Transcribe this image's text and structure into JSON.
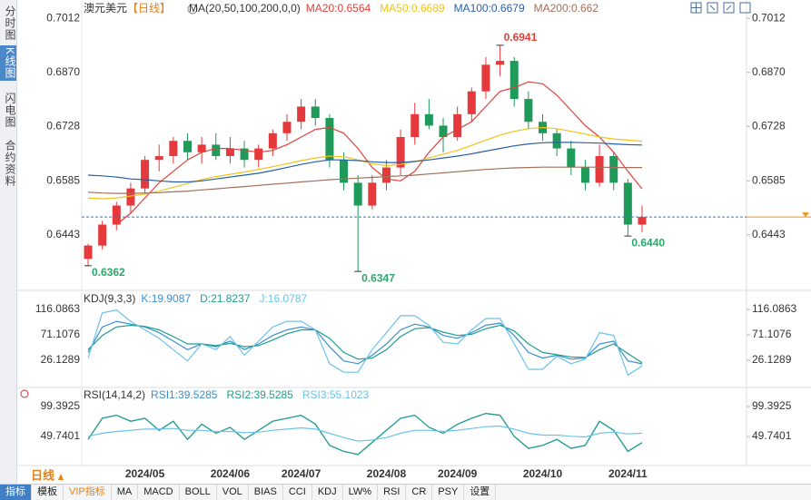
{
  "sidebar_tabs": [
    "分时图",
    "K线图",
    "闪电图",
    "合约资料"
  ],
  "chart_data": [
    {
      "type": "candlestick",
      "title": "澳元美元",
      "period": "【日线】",
      "indicator": "MA(20,50,100,200,0,0)",
      "categories": [
        null,
        null,
        null,
        null,
        "2024/05",
        null,
        null,
        null,
        null,
        null,
        "2024/06",
        null,
        null,
        null,
        null,
        "2024/07",
        null,
        null,
        null,
        null,
        null,
        "2024/08",
        null,
        null,
        null,
        null,
        "2024/09",
        null,
        null,
        null,
        null,
        null,
        "2024/10",
        null,
        null,
        null,
        null,
        null,
        "2024/11",
        null
      ],
      "ohlc": [
        [
          0.638,
          0.642,
          0.6362,
          0.6415
        ],
        [
          0.6415,
          0.648,
          0.6405,
          0.647
        ],
        [
          0.647,
          0.653,
          0.6455,
          0.652
        ],
        [
          0.652,
          0.658,
          0.65,
          0.6565
        ],
        [
          0.6565,
          0.665,
          0.655,
          0.664
        ],
        [
          0.664,
          0.668,
          0.661,
          0.665
        ],
        [
          0.665,
          0.67,
          0.663,
          0.669
        ],
        [
          0.669,
          0.671,
          0.664,
          0.666
        ],
        [
          0.666,
          0.67,
          0.663,
          0.668
        ],
        [
          0.668,
          0.671,
          0.664,
          0.665
        ],
        [
          0.665,
          0.67,
          0.663,
          0.667
        ],
        [
          0.667,
          0.669,
          0.662,
          0.664
        ],
        [
          0.664,
          0.668,
          0.662,
          0.667
        ],
        [
          0.667,
          0.672,
          0.665,
          0.671
        ],
        [
          0.671,
          0.676,
          0.669,
          0.674
        ],
        [
          0.674,
          0.68,
          0.672,
          0.678
        ],
        [
          0.678,
          0.68,
          0.673,
          0.675
        ],
        [
          0.675,
          0.676,
          0.662,
          0.664
        ],
        [
          0.664,
          0.666,
          0.656,
          0.658
        ],
        [
          0.658,
          0.66,
          0.6347,
          0.652
        ],
        [
          0.652,
          0.66,
          0.651,
          0.658
        ],
        [
          0.658,
          0.664,
          0.656,
          0.662
        ],
        [
          0.662,
          0.672,
          0.66,
          0.67
        ],
        [
          0.67,
          0.679,
          0.668,
          0.676
        ],
        [
          0.676,
          0.68,
          0.672,
          0.673
        ],
        [
          0.673,
          0.675,
          0.666,
          0.67
        ],
        [
          0.67,
          0.678,
          0.669,
          0.676
        ],
        [
          0.676,
          0.683,
          0.674,
          0.682
        ],
        [
          0.682,
          0.691,
          0.68,
          0.689
        ],
        [
          0.689,
          0.6941,
          0.686,
          0.69
        ],
        [
          0.69,
          0.691,
          0.678,
          0.68
        ],
        [
          0.68,
          0.682,
          0.672,
          0.674
        ],
        [
          0.674,
          0.676,
          0.669,
          0.671
        ],
        [
          0.671,
          0.672,
          0.665,
          0.667
        ],
        [
          0.667,
          0.669,
          0.66,
          0.662
        ],
        [
          0.662,
          0.664,
          0.656,
          0.658
        ],
        [
          0.658,
          0.668,
          0.657,
          0.665
        ],
        [
          0.665,
          0.666,
          0.656,
          0.658
        ],
        [
          0.658,
          0.659,
          0.644,
          0.647
        ],
        [
          0.647,
          0.652,
          0.645,
          0.649
        ]
      ],
      "up_color": "#e5393d",
      "down_color": "#1f9a5b",
      "series": [
        {
          "name": "MA20:0.6564",
          "color": "#e0403a",
          "values": [
            null,
            null,
            0.647,
            0.65,
            0.654,
            0.658,
            0.661,
            0.664,
            0.666,
            0.667,
            0.667,
            0.6665,
            0.666,
            0.6665,
            0.668,
            0.67,
            0.672,
            0.6725,
            0.671,
            0.667,
            0.662,
            0.659,
            0.6585,
            0.661,
            0.666,
            0.67,
            0.672,
            0.674,
            0.678,
            0.682,
            0.683,
            0.6845,
            0.684,
            0.681,
            0.677,
            0.673,
            0.67,
            0.666,
            0.661,
            0.6564
          ]
        },
        {
          "name": "MA50:0.6689",
          "color": "#f0c419",
          "values": [
            0.654,
            0.6538,
            0.654,
            0.6545,
            0.655,
            0.6558,
            0.6568,
            0.6578,
            0.6588,
            0.6596,
            0.6602,
            0.6608,
            0.6615,
            0.6622,
            0.663,
            0.6638,
            0.6645,
            0.665,
            0.6648,
            0.664,
            0.663,
            0.6625,
            0.6628,
            0.6635,
            0.6645,
            0.6655,
            0.6665,
            0.6678,
            0.6692,
            0.6705,
            0.6715,
            0.6722,
            0.6725,
            0.6722,
            0.6715,
            0.6708,
            0.67,
            0.6695,
            0.6692,
            0.6689
          ]
        },
        {
          "name": "MA100:0.6679",
          "color": "#2a5ea8",
          "values": [
            0.66,
            0.6598,
            0.6595,
            0.659,
            0.6588,
            0.6585,
            0.6582,
            0.6582,
            0.6585,
            0.659,
            0.6595,
            0.66,
            0.6605,
            0.6612,
            0.662,
            0.6628,
            0.6635,
            0.664,
            0.664,
            0.6638,
            0.6635,
            0.6633,
            0.6633,
            0.6636,
            0.664,
            0.6645,
            0.665,
            0.6656,
            0.6663,
            0.667,
            0.6677,
            0.6682,
            0.6685,
            0.6686,
            0.6686,
            0.6685,
            0.6684,
            0.6682,
            0.668,
            0.6679
          ]
        },
        {
          "name": "MA200:0.662",
          "color": "#a0705a",
          "values": [
            0.6555,
            0.6553,
            0.6552,
            0.6552,
            0.6553,
            0.6554,
            0.6556,
            0.6558,
            0.6561,
            0.6564,
            0.6567,
            0.657,
            0.6573,
            0.6576,
            0.6579,
            0.6582,
            0.6585,
            0.6588,
            0.659,
            0.6592,
            0.6594,
            0.6596,
            0.6598,
            0.66,
            0.6603,
            0.6606,
            0.6609,
            0.6612,
            0.6615,
            0.6617,
            0.6619,
            0.662,
            0.6621,
            0.6621,
            0.6621,
            0.6621,
            0.6621,
            0.662,
            0.662,
            0.662
          ]
        }
      ],
      "extremes": [
        0.6941,
        0.6362,
        0.6347,
        {
          "value": 0.644,
          "label": "0.6440"
        }
      ],
      "ylim": [
        0.6302,
        0.7048
      ],
      "yticks": [
        0.7012,
        {
          "value": 0.687,
          "label": "0.6870"
        },
        0.6728,
        0.6585,
        0.6443
      ]
    },
    {
      "type": "line",
      "title": "KDJ(9,3,3)",
      "series": [
        {
          "name": "K:19.9087",
          "color": "#3b8ed0",
          "values": [
            40,
            85,
            95,
            90,
            85,
            75,
            60,
            45,
            55,
            50,
            60,
            45,
            55,
            70,
            80,
            85,
            80,
            50,
            25,
            20,
            35,
            55,
            80,
            90,
            85,
            70,
            65,
            75,
            88,
            92,
            70,
            40,
            30,
            35,
            28,
            30,
            55,
            60,
            25,
            19.9087
          ]
        },
        {
          "name": "D:21.8237",
          "color": "#1f9e8e",
          "values": [
            45,
            70,
            85,
            88,
            86,
            80,
            68,
            55,
            55,
            52,
            56,
            50,
            52,
            62,
            73,
            80,
            80,
            65,
            40,
            28,
            30,
            45,
            68,
            82,
            84,
            76,
            70,
            72,
            82,
            88,
            78,
            55,
            40,
            36,
            32,
            31,
            45,
            55,
            38,
            21.8237
          ]
        },
        {
          "name": "J:16.0787",
          "color": "#6cc3e8",
          "values": [
            30,
            110,
            115,
            95,
            80,
            65,
            45,
            25,
            55,
            45,
            68,
            35,
            60,
            85,
            95,
            95,
            80,
            20,
            5,
            5,
            45,
            75,
            105,
            105,
            88,
            58,
            55,
            80,
            100,
            100,
            55,
            10,
            10,
            33,
            20,
            28,
            75,
            70,
            0,
            16.0787
          ]
        }
      ],
      "ylim": [
        -18.85,
        146.6
      ],
      "yticks": [
        116.0863,
        71.1076,
        26.1289
      ]
    },
    {
      "type": "line",
      "title": "RSI(14,14,2)",
      "series": [
        {
          "name": "RSI1:39.5285",
          "color": "#3b8ed0",
          "values": [
            45,
            80,
            85,
            75,
            80,
            60,
            75,
            45,
            70,
            55,
            65,
            45,
            60,
            75,
            80,
            85,
            70,
            35,
            25,
            20,
            40,
            60,
            80,
            85,
            65,
            55,
            70,
            80,
            88,
            85,
            50,
            30,
            35,
            45,
            30,
            35,
            75,
            60,
            25,
            39.5285
          ]
        },
        {
          "name": "RSI2:39.5285",
          "color": "#1f9e8e",
          "values": [
            45,
            80,
            85,
            75,
            80,
            60,
            75,
            45,
            70,
            55,
            65,
            45,
            60,
            75,
            80,
            85,
            70,
            35,
            25,
            20,
            40,
            60,
            80,
            85,
            65,
            55,
            70,
            80,
            88,
            85,
            50,
            30,
            35,
            45,
            30,
            35,
            75,
            60,
            25,
            39.5285
          ]
        },
        {
          "name": "RSI3:55.1023",
          "color": "#6cc3e8",
          "values": [
            50,
            55,
            58,
            60,
            62,
            62,
            63,
            60,
            60,
            58,
            58,
            56,
            57,
            60,
            62,
            64,
            62,
            55,
            48,
            42,
            44,
            48,
            55,
            60,
            60,
            58,
            60,
            63,
            66,
            67,
            62,
            55,
            52,
            52,
            50,
            49,
            55,
            57,
            54,
            55.1023
          ]
        }
      ],
      "ylim": [
        3.1,
        129.5
      ],
      "yticks": [
        99.3925,
        49.7401
      ]
    }
  ],
  "period_label": "日线",
  "toolbar": [
    "指标",
    "模板",
    "VIP指标",
    "MA",
    "MACD",
    "BOLL",
    "VOL",
    "BIAS",
    "CCI",
    "KDJ",
    "LW%",
    "RSI",
    "CR",
    "PSY",
    "设置"
  ]
}
